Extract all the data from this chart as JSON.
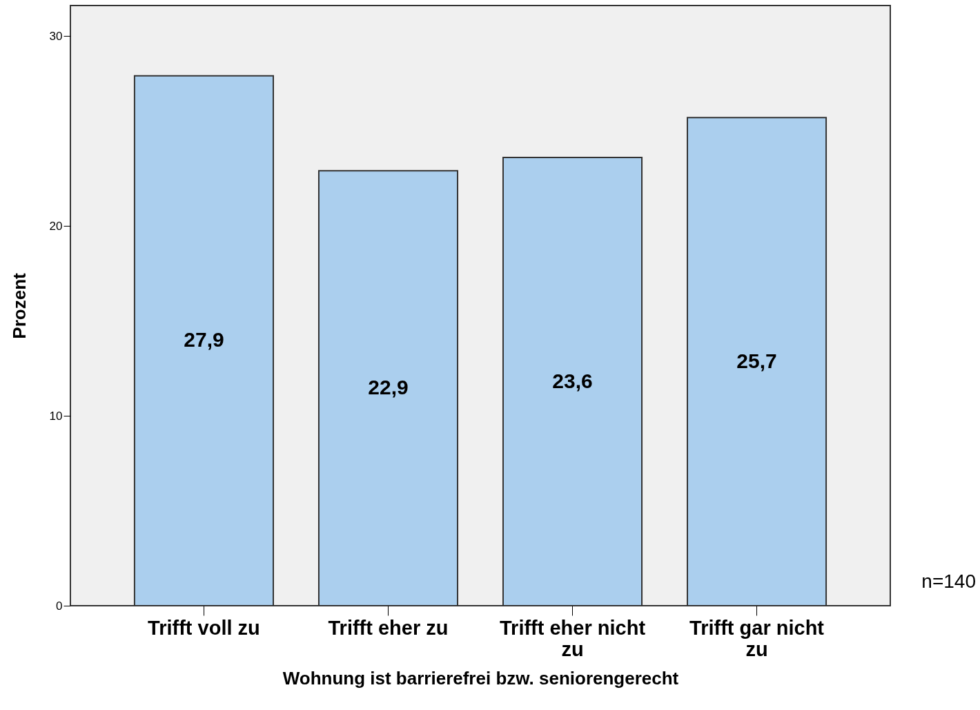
{
  "chart_data": {
    "type": "bar",
    "xlabel": "Wohnung ist barrierefrei bzw. seniorengerecht",
    "ylabel": "Prozent",
    "categories": [
      "Trifft voll zu",
      "Trifft eher zu",
      "Trifft eher nicht zu",
      "Trifft gar nicht zu"
    ],
    "values": [
      27.9,
      22.9,
      23.6,
      25.7
    ],
    "value_labels": [
      "27,9",
      "22,9",
      "23,6",
      "25,7"
    ],
    "color": "#abcfee",
    "ylim": [
      0,
      31.6
    ],
    "yticks": [
      0,
      10,
      20,
      30
    ],
    "grid": false,
    "annotations": [
      "n=140"
    ]
  }
}
